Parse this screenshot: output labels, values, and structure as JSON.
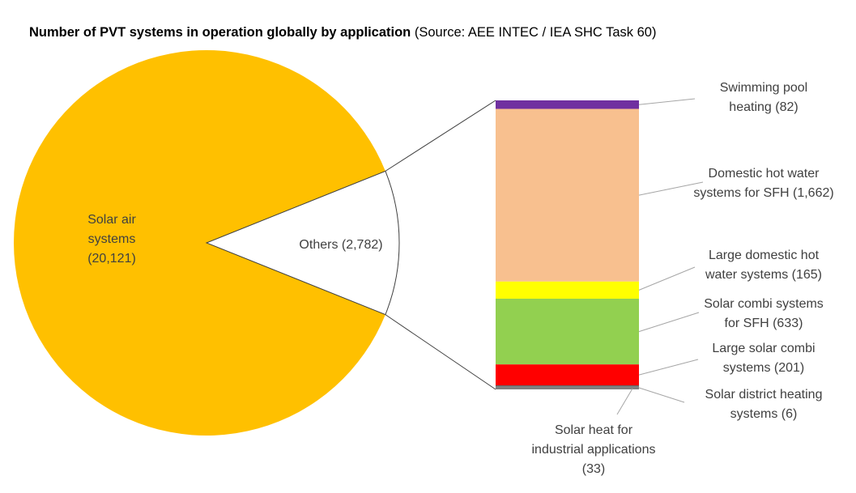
{
  "title": {
    "main": "Number of PVT systems in operation globally by application",
    "source": "(Source: AEE INTEC / IEA SHC Task 60)"
  },
  "chart_data": {
    "type": "bar-of-pie",
    "pie": {
      "slices": [
        {
          "name": "Solar air systems",
          "value": 20121,
          "label_lines": [
            "Solar air",
            "systems",
            "(20,121)"
          ],
          "color": "#FFC000"
        },
        {
          "name": "Others",
          "value": 2782,
          "label_lines": [
            "Others (2,782)"
          ],
          "color": "#FFFFFF"
        }
      ]
    },
    "bar": {
      "stack_order": "top-to-bottom",
      "segments": [
        {
          "name": "Swimming pool heating",
          "value": 82,
          "label_lines": [
            "Swimming pool",
            "heating (82)"
          ],
          "color": "#7030A0"
        },
        {
          "name": "Domestic hot water systems for SFH",
          "value": 1662,
          "label_lines": [
            "Domestic hot water",
            "systems for SFH (1,662)"
          ],
          "color": "#F8C08F"
        },
        {
          "name": "Large domestic hot water systems",
          "value": 165,
          "label_lines": [
            "Large domestic hot",
            "water systems (165)"
          ],
          "color": "#FFFF00"
        },
        {
          "name": "Solar combi systems for SFH",
          "value": 633,
          "label_lines": [
            "Solar combi systems",
            "for SFH (633)"
          ],
          "color": "#92D050"
        },
        {
          "name": "Large solar combi systems",
          "value": 201,
          "label_lines": [
            "Large solar combi",
            "systems (201)"
          ],
          "color": "#FF0000"
        },
        {
          "name": "Solar district heating systems",
          "value": 6,
          "label_lines": [
            "Solar district heating",
            "systems (6)"
          ],
          "color": "#404040"
        },
        {
          "name": "Solar heat for industrial applications",
          "value": 33,
          "label_lines": [
            "Solar heat for",
            "industrial applications",
            "(33)"
          ],
          "color": "#808080"
        }
      ]
    }
  }
}
